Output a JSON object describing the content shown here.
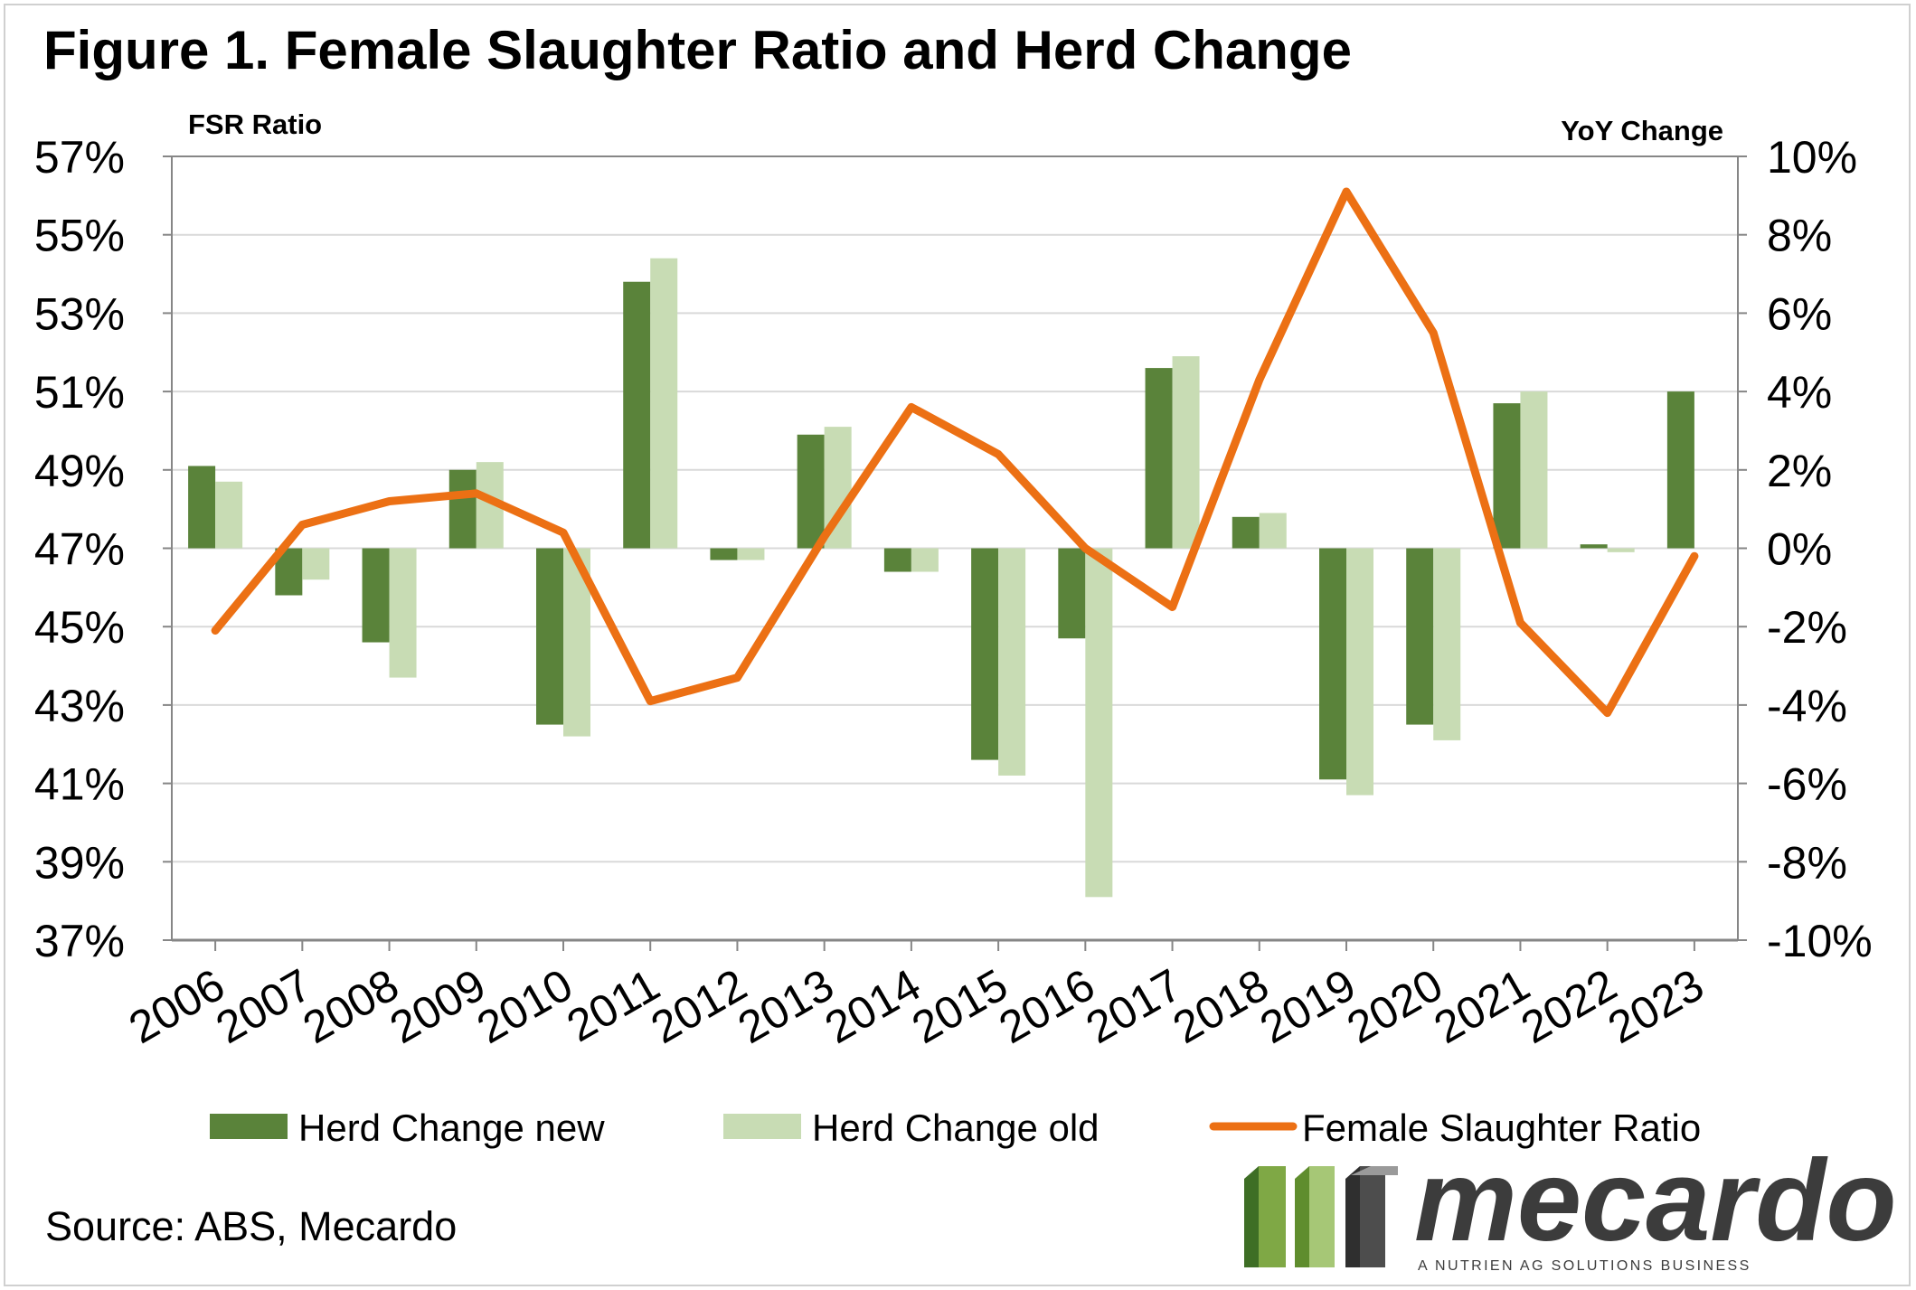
{
  "title": "Figure 1. Female Slaughter Ratio and Herd Change",
  "source": "Source: ABS, Mecardo",
  "logo": {
    "name": "mecardo",
    "tagline": "A NUTRIEN AG SOLUTIONS BUSINESS"
  },
  "colors": {
    "herd_new": "#5a833a",
    "herd_old": "#c8dcb4",
    "fsr": "#ec7014",
    "grid": "#d9d9d9",
    "axis": "#868686"
  },
  "chart_data": {
    "type": "bar",
    "title": "Figure 1. Female Slaughter Ratio and Herd Change",
    "categories": [
      "2006",
      "2007",
      "2008",
      "2009",
      "2010",
      "2011",
      "2012",
      "2013",
      "2014",
      "2015",
      "2016",
      "2017",
      "2018",
      "2019",
      "2020",
      "2021",
      "2022",
      "2023"
    ],
    "y_left": {
      "label": "FSR Ratio",
      "min": 37,
      "max": 57,
      "step": 2,
      "unit": "%"
    },
    "y_right": {
      "label": "YoY Change",
      "min": -10,
      "max": 10,
      "step": 2,
      "unit": "%"
    },
    "grid": true,
    "legend_position": "bottom",
    "series": [
      {
        "name": "Herd Change new",
        "type": "bar",
        "axis": "right",
        "values": [
          2.1,
          -1.2,
          -2.4,
          2.0,
          -4.5,
          6.8,
          -0.3,
          2.9,
          -0.6,
          -5.4,
          -2.3,
          4.6,
          0.8,
          -5.9,
          -4.5,
          3.7,
          0.1,
          4.0
        ]
      },
      {
        "name": "Herd Change old",
        "type": "bar",
        "axis": "right",
        "values": [
          1.7,
          -0.8,
          -3.3,
          2.2,
          -4.8,
          7.4,
          -0.3,
          3.1,
          -0.6,
          -5.8,
          -8.9,
          4.9,
          0.9,
          -6.3,
          -4.9,
          4.0,
          -0.1,
          null
        ]
      },
      {
        "name": "Female Slaughter Ratio",
        "type": "line",
        "axis": "left",
        "values": [
          44.9,
          47.6,
          48.2,
          48.4,
          47.4,
          43.1,
          43.7,
          47.3,
          50.6,
          49.4,
          47.0,
          45.5,
          51.3,
          56.1,
          52.5,
          45.1,
          42.8,
          46.8
        ]
      }
    ]
  }
}
